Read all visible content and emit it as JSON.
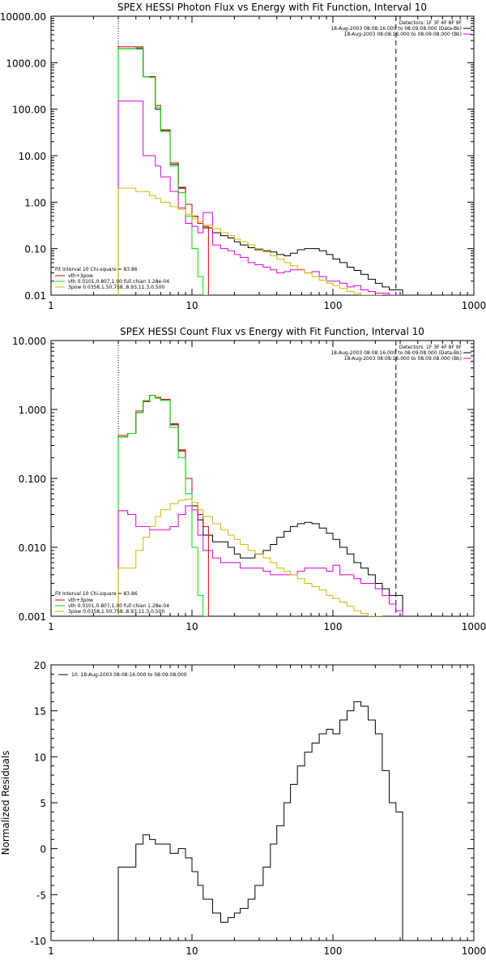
{
  "chart_data": [
    {
      "type": "line",
      "title": "SPEX HESSI Photon Flux vs Energy with Fit Function, Interval 10",
      "xlabel": "",
      "ylabel": "",
      "xscale": "log",
      "yscale": "log",
      "xlim": [
        1,
        1000
      ],
      "ylim": [
        0.01,
        10000
      ],
      "x_ticks": [
        1,
        10,
        100,
        1000
      ],
      "x_tick_labels": [
        "1",
        "10",
        "100",
        "1000"
      ],
      "y_ticks": [
        0.01,
        0.1,
        1,
        10,
        100,
        1000,
        10000
      ],
      "y_tick_labels": [
        "0.01",
        "0.10",
        "1.00",
        "10.00",
        "100.00",
        "1000.00",
        "10000.00"
      ],
      "vlines": [
        {
          "x": 3,
          "style": "dotted"
        },
        {
          "x": 280,
          "style": "dashed"
        }
      ],
      "legend_topright": [
        "Detectors: 1F 3F 4F 8F 9F",
        "18-Aug-2003 08:08:16.000 to 08:09:08.000 (Data-Bk)",
        "18-Aug-2003 08:08:16.000 to 08:09:08.000 (Bk)"
      ],
      "legend_bottomleft": [
        "Fit Interval 10   Chi-square = 83.86",
        "vth+3pow",
        "vth 0.0101,0.807,1.00   full chian 1.28e-04",
        "3pow 0.0358,1.50,758.,8.93,11.3,0.500"
      ],
      "series": [
        {
          "color": "#000000",
          "x": [
            3,
            3.5,
            4,
            4.5,
            5,
            5.5,
            6,
            7,
            8,
            9,
            10,
            11,
            12,
            14,
            16,
            18,
            20,
            22,
            25,
            28,
            32,
            36,
            40,
            45,
            50,
            56,
            63,
            71,
            80,
            90,
            100,
            112,
            126,
            141,
            158,
            178,
            200,
            224,
            251,
            280
          ],
          "y": [
            2000,
            2000,
            2000,
            500,
            500,
            100,
            35,
            6.5,
            2.0,
            0.9,
            0.5,
            0.35,
            0.28,
            0.22,
            0.19,
            0.17,
            0.14,
            0.12,
            0.105,
            0.095,
            0.09,
            0.085,
            0.075,
            0.07,
            0.08,
            0.095,
            0.1,
            0.1,
            0.09,
            0.075,
            0.06,
            0.05,
            0.04,
            0.034,
            0.028,
            0.022,
            0.018,
            0.015,
            0.013,
            0.013
          ]
        },
        {
          "color": "#dd0000",
          "x": [
            3,
            3.5,
            4,
            4.5,
            5,
            5.5,
            6,
            7,
            8,
            9,
            10,
            11,
            12
          ],
          "y": [
            2200,
            2200,
            2200,
            500,
            500,
            120,
            36,
            7,
            2.1,
            0.9,
            0.5,
            0.35,
            0.3
          ]
        },
        {
          "color": "#00dd00",
          "x": [
            3,
            3.5,
            4,
            4.5,
            5,
            5.5,
            6,
            7,
            8,
            9,
            10,
            11,
            12
          ],
          "y": [
            2000,
            2000,
            2100,
            500,
            480,
            110,
            33,
            6,
            1.6,
            0.5,
            0.1,
            0.025,
            0.01
          ]
        },
        {
          "color": "#dd00dd",
          "x": [
            3,
            3.5,
            4,
            4.5,
            5,
            5.5,
            6,
            7,
            8,
            9,
            10,
            11,
            12,
            14,
            16,
            18,
            20,
            22,
            25,
            28,
            32,
            36,
            40,
            45,
            50,
            56,
            63,
            71,
            80,
            90,
            100,
            112,
            126,
            141,
            158,
            178,
            200,
            224,
            251,
            280
          ],
          "y": [
            150,
            150,
            150,
            10,
            10,
            6,
            3.5,
            1.7,
            0.75,
            0.35,
            0.3,
            0.22,
            0.6,
            0.12,
            0.1,
            0.09,
            0.075,
            0.065,
            0.05,
            0.045,
            0.04,
            0.035,
            0.03,
            0.032,
            0.035,
            0.035,
            0.03,
            0.032,
            0.025,
            0.02,
            0.02,
            0.018,
            0.015,
            0.016,
            0.013,
            0.012,
            0.011,
            0.011,
            0.01,
            0.01
          ]
        },
        {
          "color": "#ccbb00",
          "x": [
            3,
            3.5,
            4,
            4.5,
            5,
            5.5,
            6,
            7,
            8,
            9,
            10,
            11,
            12,
            14,
            16,
            18,
            20,
            22,
            25,
            28,
            32,
            36,
            40,
            45,
            50,
            56,
            63,
            71,
            80,
            90,
            100,
            112,
            126,
            141,
            158,
            178,
            200
          ],
          "y": [
            2.0,
            2.0,
            1.7,
            1.7,
            1.4,
            1.2,
            1.0,
            0.8,
            0.7,
            0.55,
            0.45,
            0.38,
            0.32,
            0.27,
            0.22,
            0.19,
            0.16,
            0.14,
            0.12,
            0.1,
            0.085,
            0.07,
            0.06,
            0.05,
            0.043,
            0.036,
            0.03,
            0.025,
            0.021,
            0.018,
            0.016,
            0.014,
            0.012,
            0.011,
            0.01,
            0.01,
            0.01
          ]
        }
      ]
    },
    {
      "type": "line",
      "title": "SPEX HESSI Count Flux vs Energy with Fit Function, Interval 10",
      "xlabel": "",
      "ylabel": "",
      "xscale": "log",
      "yscale": "log",
      "xlim": [
        1,
        1000
      ],
      "ylim": [
        0.001,
        10
      ],
      "x_ticks": [
        1,
        10,
        100,
        1000
      ],
      "x_tick_labels": [
        "1",
        "10",
        "100",
        "1000"
      ],
      "y_ticks": [
        0.001,
        0.01,
        0.1,
        1,
        10
      ],
      "y_tick_labels": [
        "0.001",
        "0.010",
        "0.100",
        "1.000",
        "10.000"
      ],
      "vlines": [
        {
          "x": 3,
          "style": "dotted"
        },
        {
          "x": 280,
          "style": "dashed"
        }
      ],
      "legend_topright": [
        "Detectors: 1F 3F 4F 8F 9F",
        "18-Aug-2003 08:08:16.000 to 08:09:08.000 (Data-Bk)",
        "18-Aug-2003 08:08:16.000 to 08:09:08.000 (Bk)"
      ],
      "legend_bottomleft": [
        "Fit Interval 10   Chi-square = 83.86",
        "vth+3pow",
        "vth 0.0101,0.807,1.00   full chian 1.28e-04",
        "3pow 0.0358,1.50,758.,8.93,11.3,0.500"
      ],
      "series": [
        {
          "color": "#000000",
          "x": [
            3,
            3.5,
            4,
            4.5,
            5,
            5.5,
            6,
            7,
            8,
            9,
            10,
            11,
            12,
            14,
            16,
            18,
            20,
            22,
            25,
            28,
            32,
            36,
            40,
            45,
            50,
            56,
            63,
            71,
            80,
            90,
            100,
            112,
            126,
            141,
            158,
            178,
            200,
            224,
            251,
            280
          ],
          "y": [
            0.4,
            0.45,
            0.9,
            1.3,
            1.6,
            1.5,
            1.4,
            0.6,
            0.25,
            0.1,
            0.04,
            0.025,
            0.015,
            0.012,
            0.012,
            0.01,
            0.008,
            0.007,
            0.007,
            0.008,
            0.009,
            0.011,
            0.014,
            0.017,
            0.02,
            0.022,
            0.023,
            0.022,
            0.019,
            0.016,
            0.013,
            0.01,
            0.008,
            0.006,
            0.005,
            0.004,
            0.003,
            0.0025,
            0.002,
            0.002
          ]
        },
        {
          "color": "#dd0000",
          "x": [
            3,
            3.5,
            4,
            4.5,
            5,
            5.5,
            6,
            7,
            8,
            9,
            10,
            11,
            12
          ],
          "y": [
            0.42,
            0.45,
            0.95,
            1.3,
            1.6,
            1.5,
            1.4,
            0.62,
            0.26,
            0.1,
            0.045,
            0.03,
            0.02
          ]
        },
        {
          "color": "#00dd00",
          "x": [
            3,
            3.5,
            4,
            4.5,
            5,
            5.5,
            6,
            7,
            8,
            9,
            10,
            11,
            12
          ],
          "y": [
            0.4,
            0.45,
            0.9,
            1.35,
            1.6,
            1.45,
            1.35,
            0.55,
            0.2,
            0.06,
            0.01,
            0.002,
            0.001
          ]
        },
        {
          "color": "#dd00dd",
          "x": [
            3,
            3.5,
            4,
            4.5,
            5,
            5.5,
            6,
            7,
            8,
            9,
            10,
            11,
            12,
            14,
            16,
            18,
            20,
            22,
            25,
            28,
            32,
            36,
            40,
            45,
            50,
            56,
            63,
            71,
            80,
            90,
            100,
            112,
            126,
            141,
            158,
            178,
            200,
            224,
            251,
            280
          ],
          "y": [
            0.034,
            0.03,
            0.02,
            0.02,
            0.018,
            0.018,
            0.018,
            0.02,
            0.03,
            0.04,
            0.035,
            0.015,
            0.009,
            0.007,
            0.006,
            0.006,
            0.006,
            0.005,
            0.005,
            0.005,
            0.0045,
            0.004,
            0.004,
            0.004,
            0.004,
            0.0045,
            0.005,
            0.005,
            0.005,
            0.0045,
            0.0055,
            0.004,
            0.004,
            0.0035,
            0.003,
            0.003,
            0.0025,
            0.002,
            0.0015,
            0.0012
          ]
        },
        {
          "color": "#ccbb00",
          "x": [
            3,
            3.5,
            4,
            4.5,
            5,
            5.5,
            6,
            7,
            8,
            9,
            10,
            11,
            12,
            14,
            16,
            18,
            20,
            22,
            25,
            28,
            32,
            36,
            40,
            45,
            50,
            56,
            63,
            71,
            80,
            90,
            100,
            112,
            126,
            141,
            158,
            178,
            200
          ],
          "y": [
            0.005,
            0.005,
            0.009,
            0.014,
            0.02,
            0.028,
            0.035,
            0.043,
            0.048,
            0.05,
            0.045,
            0.035,
            0.028,
            0.022,
            0.018,
            0.015,
            0.013,
            0.011,
            0.009,
            0.008,
            0.007,
            0.006,
            0.005,
            0.0045,
            0.004,
            0.0035,
            0.003,
            0.0027,
            0.0024,
            0.002,
            0.0018,
            0.0016,
            0.0014,
            0.0012,
            0.0011,
            0.001,
            0.001
          ]
        }
      ]
    },
    {
      "type": "line",
      "title": "",
      "xlabel": "",
      "ylabel": "Normalized Residuals",
      "xscale": "log",
      "yscale": "linear",
      "xlim": [
        1,
        1000
      ],
      "ylim": [
        -10,
        20
      ],
      "x_ticks": [
        1,
        10,
        100,
        1000
      ],
      "x_tick_labels": [
        "1",
        "10",
        "100",
        "1000"
      ],
      "y_ticks": [
        -10,
        -5,
        0,
        5,
        10,
        15,
        20
      ],
      "y_tick_labels": [
        "-10",
        "-5",
        "0",
        "5",
        "10",
        "15",
        "20"
      ],
      "legend": [
        "10. 18-Aug-2003 08:08:16.000 to 08:09:08.000"
      ],
      "series": [
        {
          "color": "#000000",
          "x": [
            3,
            3.5,
            4,
            4.5,
            5,
            5.5,
            6,
            7,
            8,
            9,
            10,
            11,
            12,
            14,
            16,
            18,
            20,
            22,
            25,
            28,
            32,
            36,
            40,
            45,
            50,
            56,
            63,
            71,
            80,
            90,
            100,
            112,
            126,
            141,
            158,
            178,
            200,
            224,
            251,
            280
          ],
          "y": [
            -2.0,
            -2.0,
            0.5,
            1.5,
            1.0,
            0.5,
            0.5,
            -0.5,
            0.0,
            -1.0,
            -2.5,
            -4.0,
            -5.5,
            -7.0,
            -8.0,
            -7.5,
            -7.0,
            -6.5,
            -5.5,
            -4.0,
            -2.0,
            0.5,
            2.5,
            5.0,
            7.0,
            9.0,
            10.5,
            11.5,
            12.5,
            13.0,
            12.5,
            14.0,
            15.0,
            16.0,
            15.5,
            14.0,
            12.5,
            8.5,
            5.0,
            4.0
          ]
        }
      ]
    }
  ]
}
